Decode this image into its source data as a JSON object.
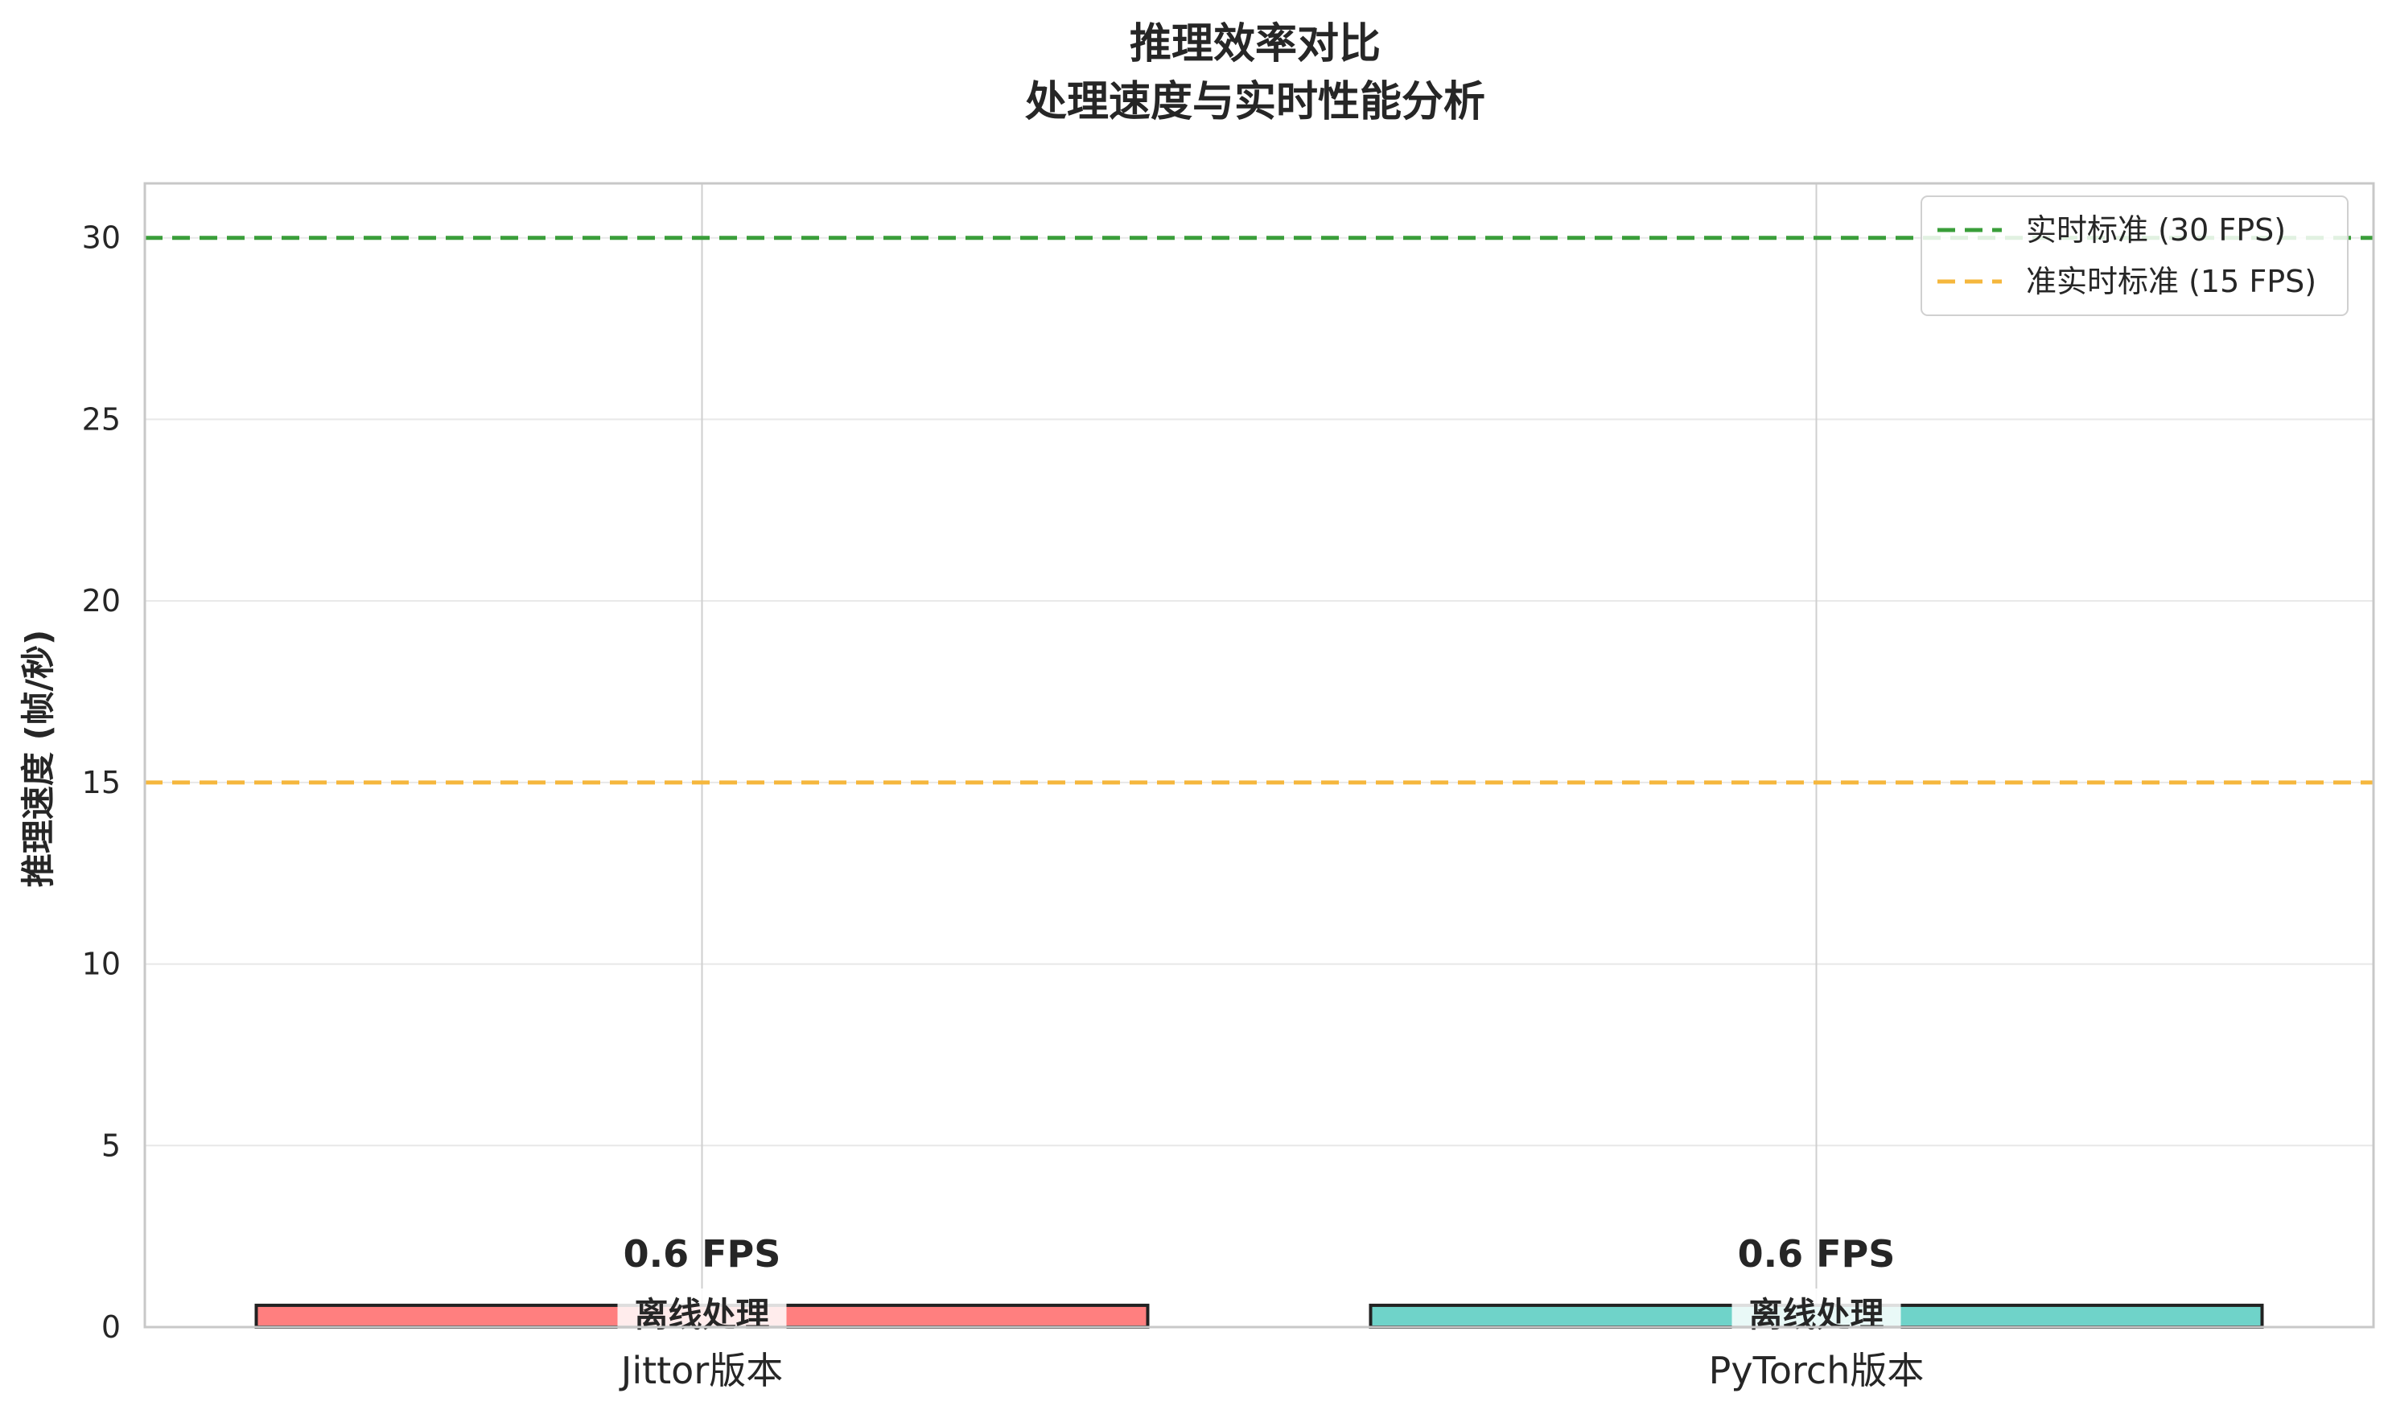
{
  "chart_data": {
    "type": "bar",
    "title_lines": [
      "推理效率对比",
      "处理速度与实时性能分析"
    ],
    "ylabel": "推理速度 (帧/秒)",
    "xlabel": "",
    "categories": [
      "Jittor版本",
      "PyTorch版本"
    ],
    "values": [
      0.6,
      0.6
    ],
    "value_labels": [
      "0.6 FPS",
      "0.6 FPS"
    ],
    "mode_labels": [
      "离线处理",
      "离线处理"
    ],
    "bar_colors": [
      "#ff7f7f",
      "#6fd3c9"
    ],
    "bar_edge_color": "#222222",
    "ylim": [
      0,
      31.5
    ],
    "yticks": [
      0,
      5,
      10,
      15,
      20,
      25,
      30
    ],
    "grid": true,
    "reference_lines": [
      {
        "name": "实时标准 (30 FPS)",
        "y": 30,
        "color": "#3a9e3a",
        "style": "dashed"
      },
      {
        "name": "准实时标准 (15 FPS)",
        "y": 15,
        "color": "#f5b73d",
        "style": "dashed"
      }
    ],
    "legend_position": "top-right"
  }
}
